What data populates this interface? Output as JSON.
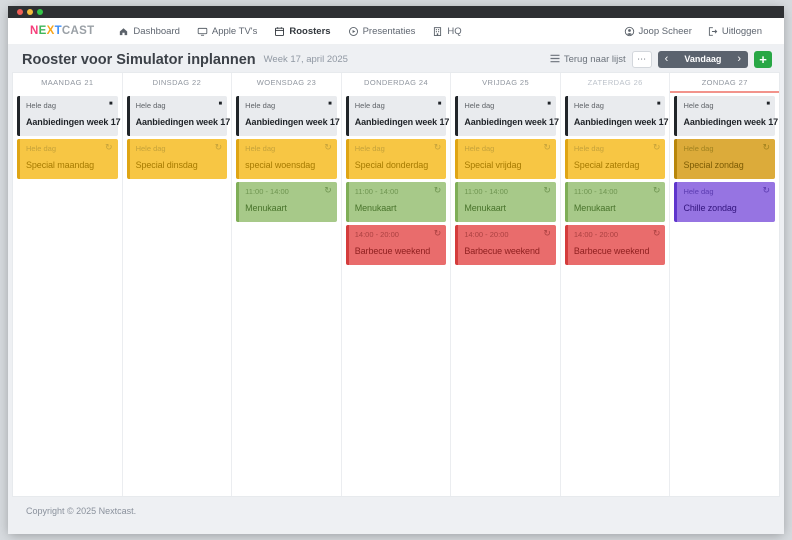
{
  "navbar": {
    "logo": {
      "l1": "N",
      "l2": "E",
      "l3": "X",
      "l4": "T",
      "rest": "CAST",
      "colors": {
        "l1": "#f63e7b",
        "l2": "#3fb65a",
        "l3": "#f7a51b",
        "l4": "#3e8ef7",
        "rest": "#9aa0a6"
      }
    },
    "items": [
      {
        "label": "Dashboard",
        "icon": "home-icon"
      },
      {
        "label": "Apple TV's",
        "icon": "display-icon"
      },
      {
        "label": "Roosters",
        "icon": "calendar-icon",
        "active": true
      },
      {
        "label": "Presentaties",
        "icon": "play-circle-icon"
      },
      {
        "label": "HQ",
        "icon": "building-icon"
      }
    ],
    "user_label": "Joop Scheer",
    "logout_label": "Uitloggen"
  },
  "header": {
    "title": "Rooster voor Simulator inplannen",
    "subtitle": "Week 17, april 2025",
    "back_label": "Terug naar lijst",
    "options_label": "⋯",
    "prev_label": "‹",
    "today_label": "Vandaag",
    "next_label": "›",
    "add_label": "+",
    "add_color": "#28a745"
  },
  "icons": {
    "repeat": "↻",
    "stop": "■"
  },
  "calendar": {
    "today_underline_color": "#f2938b",
    "event_colors": {
      "gray": {
        "bg": "#e9ebee",
        "border": "#212529",
        "time": "#5f6368",
        "title": "#1f2328"
      },
      "yellow": {
        "bg": "#f7c644",
        "border": "#dfa514",
        "time": "#c5a23a",
        "title": "#a77b00"
      },
      "green": {
        "bg": "#a7c989",
        "border": "#7fae58",
        "time": "#6f9551",
        "title": "#49742c"
      },
      "red": {
        "bg": "#e96c6c",
        "border": "#d43c3c",
        "time": "#ab4141",
        "title": "#8e1f1f"
      },
      "gold": {
        "bg": "#dcab3a",
        "border": "#b8860b",
        "time": "#a1821f",
        "title": "#7d5c04"
      },
      "purple": {
        "bg": "#9674e2",
        "border": "#5f35cc",
        "time": "#5b3bb0",
        "title": "#32147d"
      }
    },
    "days": [
      {
        "label": "MAANDAG 21",
        "muted": false,
        "today": false,
        "events": [
          {
            "time": "Hele dag",
            "title": "Aanbiedingen week 17",
            "type": "gray",
            "icon": "stop"
          },
          {
            "time": "Hele dag",
            "title": "Special maandag",
            "type": "yellow",
            "icon": "repeat"
          }
        ]
      },
      {
        "label": "DINSDAG 22",
        "muted": false,
        "today": false,
        "events": [
          {
            "time": "Hele dag",
            "title": "Aanbiedingen week 17",
            "type": "gray",
            "icon": "stop"
          },
          {
            "time": "Hele dag",
            "title": "Special dinsdag",
            "type": "yellow",
            "icon": "repeat"
          }
        ]
      },
      {
        "label": "WOENSDAG 23",
        "muted": false,
        "today": false,
        "events": [
          {
            "time": "Hele dag",
            "title": "Aanbiedingen week 17",
            "type": "gray",
            "icon": "stop"
          },
          {
            "time": "Hele dag",
            "title": "special woensdag",
            "type": "yellow",
            "icon": "repeat"
          },
          {
            "time": "11:00 - 14:00",
            "title": "Menukaart",
            "type": "green",
            "icon": "repeat"
          }
        ]
      },
      {
        "label": "DONDERDAG 24",
        "muted": false,
        "today": false,
        "events": [
          {
            "time": "Hele dag",
            "title": "Aanbiedingen week 17",
            "type": "gray",
            "icon": "stop"
          },
          {
            "time": "Hele dag",
            "title": "Special donderdag",
            "type": "yellow",
            "icon": "repeat"
          },
          {
            "time": "11:00 - 14:00",
            "title": "Menukaart",
            "type": "green",
            "icon": "repeat"
          },
          {
            "time": "14:00 - 20:00",
            "title": "Barbecue weekend",
            "type": "red",
            "icon": "repeat"
          }
        ]
      },
      {
        "label": "VRIJDAG 25",
        "muted": false,
        "today": false,
        "events": [
          {
            "time": "Hele dag",
            "title": "Aanbiedingen week 17",
            "type": "gray",
            "icon": "stop"
          },
          {
            "time": "Hele dag",
            "title": "Special vrijdag",
            "type": "yellow",
            "icon": "repeat"
          },
          {
            "time": "11:00 - 14:00",
            "title": "Menukaart",
            "type": "green",
            "icon": "repeat"
          },
          {
            "time": "14:00 - 20:00",
            "title": "Barbecue weekend",
            "type": "red",
            "icon": "repeat"
          }
        ]
      },
      {
        "label": "ZATERDAG 26",
        "muted": true,
        "today": false,
        "events": [
          {
            "time": "Hele dag",
            "title": "Aanbiedingen week 17",
            "type": "gray",
            "icon": "stop"
          },
          {
            "time": "Hele dag",
            "title": "Special zaterdag",
            "type": "yellow",
            "icon": "repeat"
          },
          {
            "time": "11:00 - 14:00",
            "title": "Menukaart",
            "type": "green",
            "icon": "repeat"
          },
          {
            "time": "14:00 - 20:00",
            "title": "Barbecue weekend",
            "type": "red",
            "icon": "repeat"
          }
        ]
      },
      {
        "label": "ZONDAG 27",
        "muted": false,
        "today": true,
        "events": [
          {
            "time": "Hele dag",
            "title": "Aanbiedingen week 17",
            "type": "gray",
            "icon": "stop"
          },
          {
            "time": "Hele dag",
            "title": "Special zondag",
            "type": "gold",
            "icon": "repeat"
          },
          {
            "time": "Hele dag",
            "title": "Chille zondag",
            "type": "purple",
            "icon": "repeat"
          }
        ]
      }
    ]
  },
  "footer": {
    "copyright": "Copyright © 2025 Nextcast."
  }
}
